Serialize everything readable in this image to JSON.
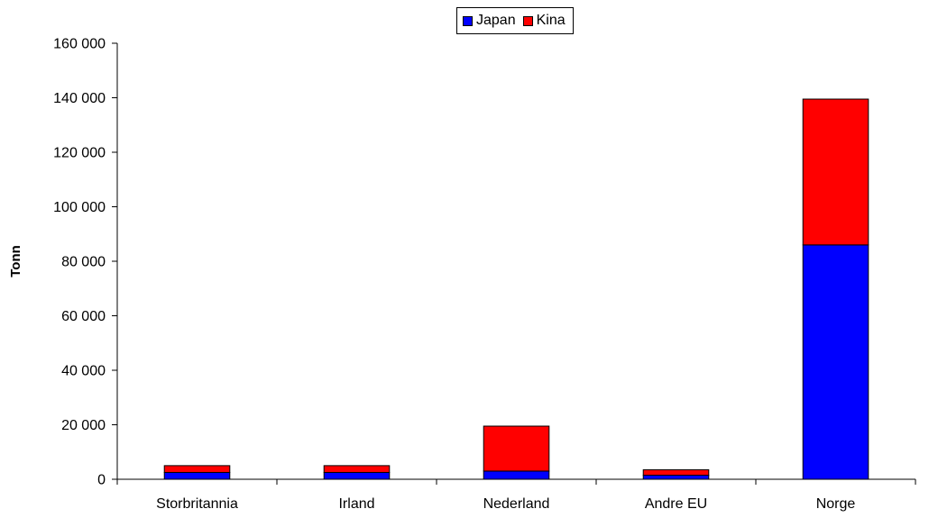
{
  "chart_data": {
    "type": "bar",
    "stacked": true,
    "categories": [
      "Storbritannia",
      "Irland",
      "Nederland",
      "Andre EU",
      "Norge"
    ],
    "series": [
      {
        "name": "Japan",
        "color": "#0000ff",
        "values": [
          2500,
          2500,
          3000,
          1500,
          86000
        ]
      },
      {
        "name": "Kina",
        "color": "#ff0000",
        "values": [
          2500,
          2500,
          16500,
          2000,
          53500
        ]
      }
    ],
    "title": "",
    "xlabel": "",
    "ylabel": "Tonn",
    "ylim": [
      0,
      160000
    ],
    "yticks": [
      0,
      20000,
      40000,
      60000,
      80000,
      100000,
      120000,
      140000,
      160000
    ],
    "ytick_labels": [
      "0",
      "20 000",
      "40 000",
      "60 000",
      "80 000",
      "100 000",
      "120 000",
      "140 000",
      "160 000"
    ],
    "grid": false,
    "legend_position": "top"
  }
}
